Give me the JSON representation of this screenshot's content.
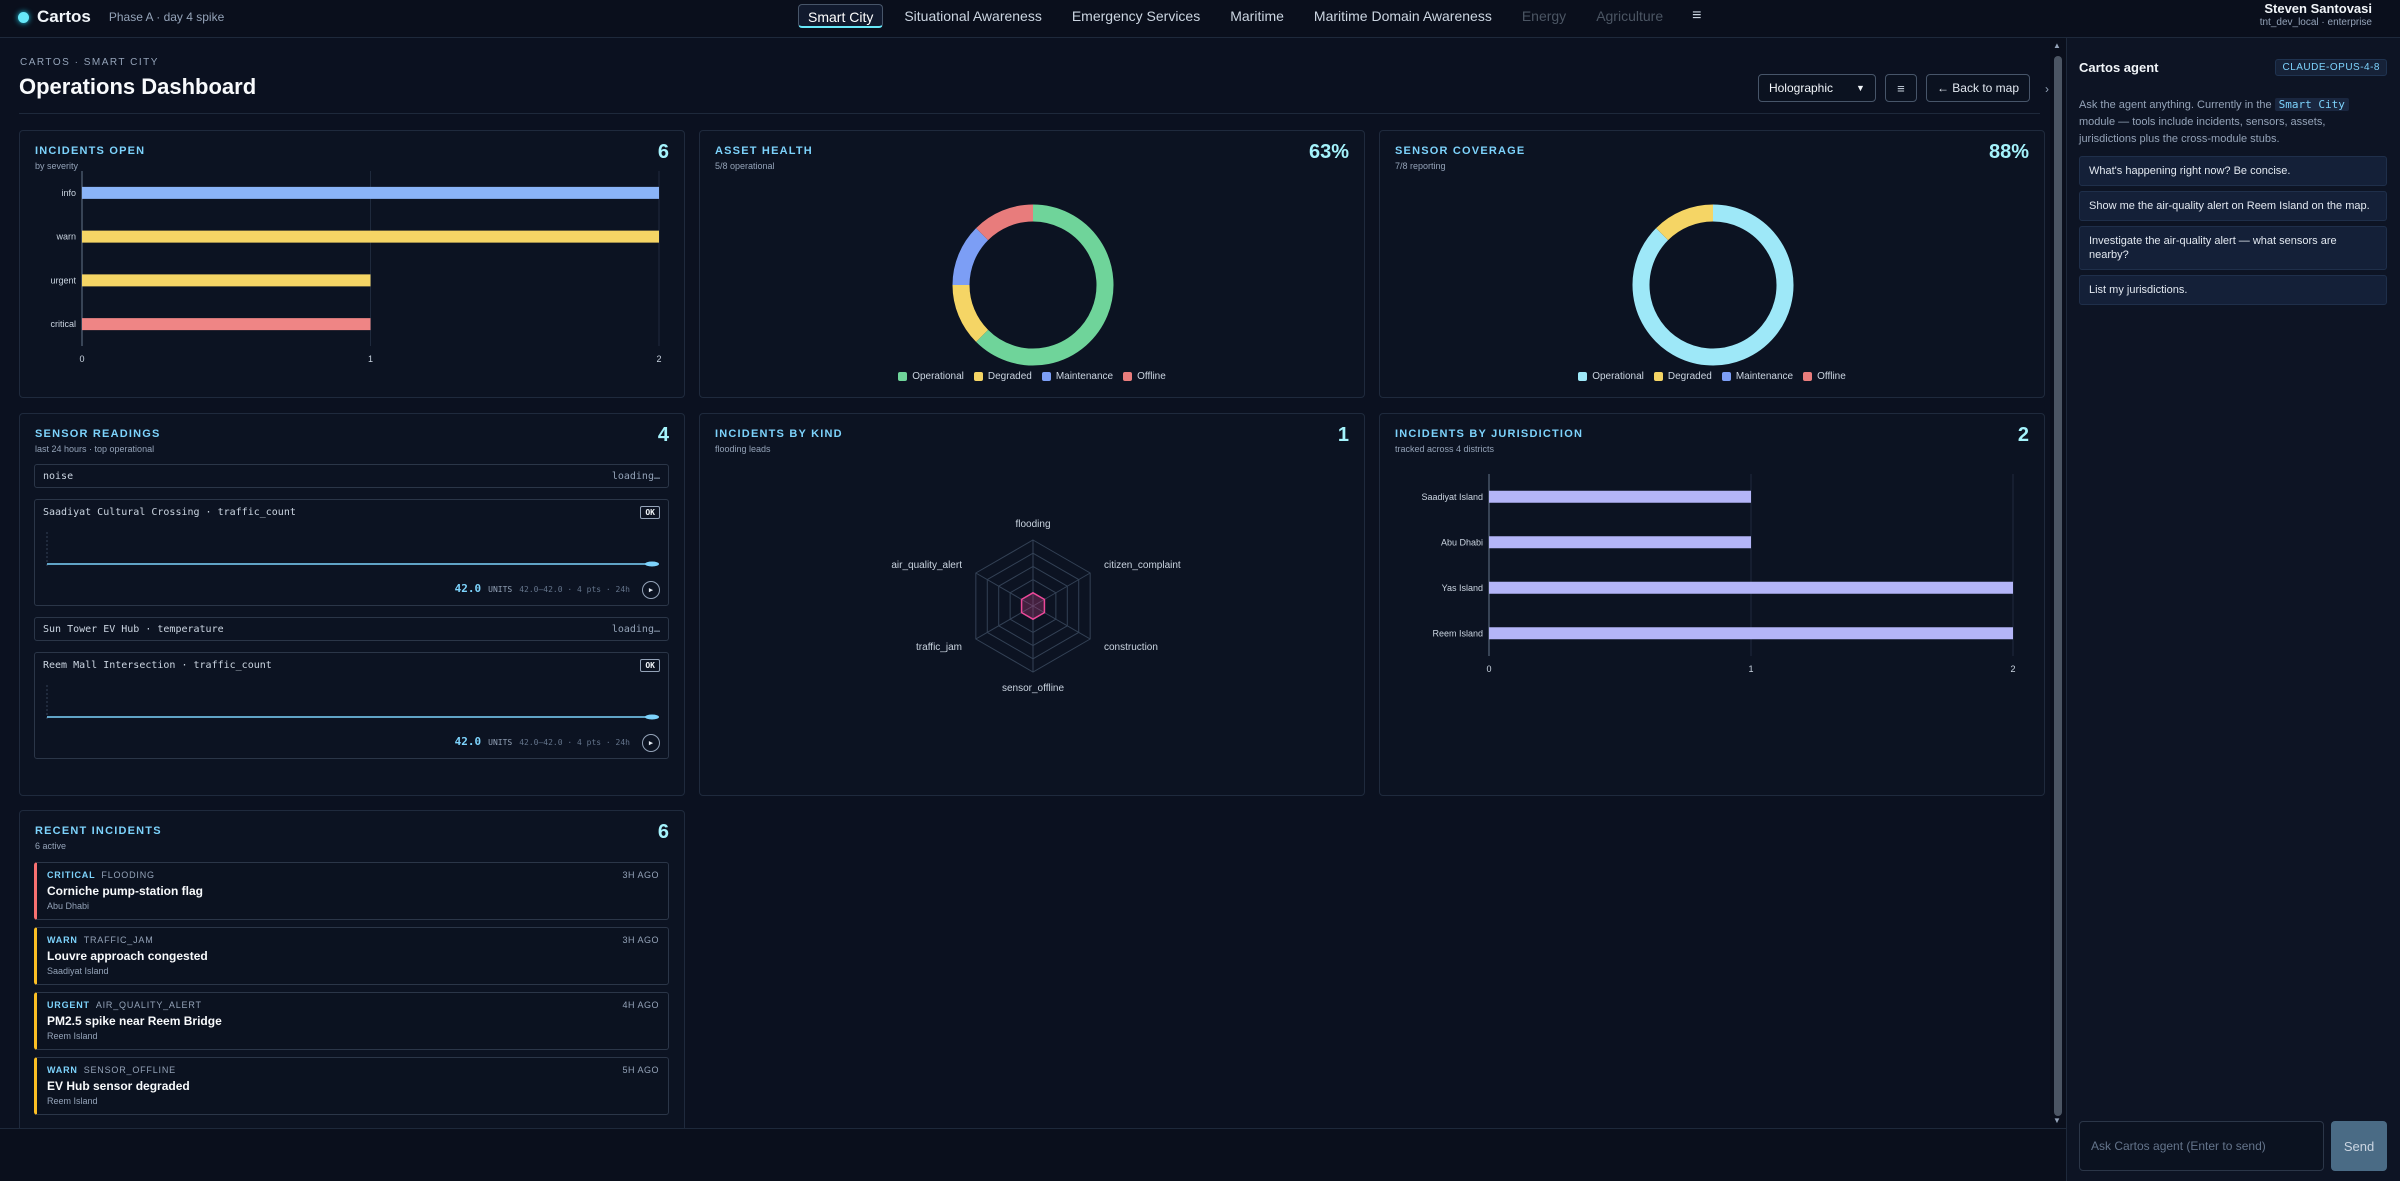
{
  "app": {
    "name": "Cartos",
    "phase": "Phase A · day 4 spike"
  },
  "nav": {
    "tabs": [
      {
        "label": "Smart City",
        "active": true
      },
      {
        "label": "Situational Awareness"
      },
      {
        "label": "Emergency Services"
      },
      {
        "label": "Maritime"
      },
      {
        "label": "Maritime Domain Awareness"
      },
      {
        "label": "Energy",
        "disabled": true
      },
      {
        "label": "Agriculture",
        "disabled": true
      }
    ],
    "menu_icon": "≡"
  },
  "user": {
    "name": "Steven Santovasi",
    "sub": "tnt_dev_local · enterprise"
  },
  "page": {
    "eyebrow": "CARTOS · SMART CITY",
    "title": "Operations Dashboard",
    "view_select": "Holographic",
    "list_icon": "≡",
    "back_label": "← Back to map"
  },
  "colors": {
    "info": "#8ab4f8",
    "warn": "#f5d565",
    "urgent": "#f5d565",
    "critical": "#ef8585",
    "operational": "#6fd49a",
    "degraded": "#f5d565",
    "maintenance": "#7c9ef5",
    "offline": "#e87c7c",
    "coverage_op": "#9ee8f8",
    "coverage_deg": "#f5d565",
    "jurisdiction": "#b4b5f8",
    "radar": "#ec4899"
  },
  "cards": {
    "incidents_open": {
      "title": "INCIDENTS OPEN",
      "sub": "by severity",
      "value": "6",
      "chart_data": {
        "type": "bar",
        "orientation": "horizontal",
        "categories": [
          "info",
          "warn",
          "urgent",
          "critical"
        ],
        "values": [
          2,
          2,
          1,
          1
        ],
        "xlim": [
          0,
          2
        ],
        "xticks": [
          "0",
          "1",
          "2"
        ]
      }
    },
    "asset_health": {
      "title": "ASSET HEALTH",
      "sub": "5/8 operational",
      "value": "63%",
      "chart_data": {
        "type": "pie",
        "donut": true,
        "labels": [
          "Operational",
          "Degraded",
          "Maintenance",
          "Offline"
        ],
        "values": [
          5,
          1,
          1,
          1
        ]
      }
    },
    "sensor_coverage": {
      "title": "SENSOR COVERAGE",
      "sub": "7/8 reporting",
      "value": "88%",
      "chart_data": {
        "type": "pie",
        "donut": true,
        "labels": [
          "Operational",
          "Degraded",
          "Maintenance",
          "Offline"
        ],
        "values": [
          7,
          1,
          0,
          0
        ]
      }
    },
    "sensor_readings": {
      "title": "SENSOR READINGS",
      "sub": "last 24 hours · top operational",
      "value": "4",
      "rows": [
        {
          "name": "noise",
          "status": "loading…"
        },
        {
          "name": "Saadiyat Cultural Crossing · traffic_count",
          "badge": "OK",
          "value": "42.0",
          "unit": "UNITS",
          "range": "42.0–42.0 · 4 pts · 24h"
        },
        {
          "name": "Sun Tower EV Hub · temperature",
          "status": "loading…"
        },
        {
          "name": "Reem Mall Intersection · traffic_count",
          "badge": "OK",
          "value": "42.0",
          "unit": "UNITS",
          "range": "42.0–42.0 · 4 pts · 24h"
        }
      ],
      "play_icon": "▶"
    },
    "incidents_by_kind": {
      "title": "INCIDENTS BY KIND",
      "sub": "flooding leads",
      "value": "1",
      "chart_data": {
        "type": "radar",
        "axes": [
          "flooding",
          "citizen_complaint",
          "construction",
          "sensor_offline",
          "traffic_jam",
          "air_quality_alert"
        ],
        "values": [
          1,
          1,
          1,
          1,
          1,
          1
        ],
        "max": 5
      }
    },
    "incidents_by_jurisdiction": {
      "title": "INCIDENTS BY JURISDICTION",
      "sub": "tracked across 4 districts",
      "value": "2",
      "chart_data": {
        "type": "bar",
        "orientation": "horizontal",
        "categories": [
          "Saadiyat Island",
          "Abu Dhabi",
          "Yas Island",
          "Reem Island"
        ],
        "values": [
          1,
          1,
          2,
          2
        ],
        "xlim": [
          0,
          2
        ],
        "xticks": [
          "0",
          "1",
          "2"
        ]
      }
    },
    "recent_incidents": {
      "title": "RECENT INCIDENTS",
      "sub": "6 active",
      "value": "6",
      "items": [
        {
          "severity": "CRITICAL",
          "kind": "FLOODING",
          "ago": "3H AGO",
          "title": "Corniche pump-station flag",
          "place": "Abu Dhabi",
          "level": "critical"
        },
        {
          "severity": "WARN",
          "kind": "TRAFFIC_JAM",
          "ago": "3H AGO",
          "title": "Louvre approach congested",
          "place": "Saadiyat Island",
          "level": "warn"
        },
        {
          "severity": "URGENT",
          "kind": "AIR_QUALITY_ALERT",
          "ago": "4H AGO",
          "title": "PM2.5 spike near Reem Bridge",
          "place": "Reem Island",
          "level": "urgent"
        },
        {
          "severity": "WARN",
          "kind": "SENSOR_OFFLINE",
          "ago": "5H AGO",
          "title": "EV Hub sensor degraded",
          "place": "Reem Island",
          "level": "warn"
        }
      ]
    }
  },
  "agent": {
    "title": "Cartos agent",
    "model": "CLAUDE-OPUS-4-8",
    "intro_before": "Ask the agent anything. Currently in the ",
    "intro_module": "Smart City",
    "intro_after": " module — tools include incidents, sensors, assets, jurisdictions plus the cross-module stubs.",
    "suggestions": [
      "What's happening right now? Be concise.",
      "Show me the air-quality alert on Reem Island on the map.",
      "Investigate the air-quality alert — what sensors are nearby?",
      "List my jurisdictions."
    ],
    "input_placeholder": "Ask Cartos agent (Enter to send)",
    "send_label": "Send",
    "collapse_icon": "›"
  },
  "scroll": {
    "up": "▲",
    "down": "▼"
  }
}
